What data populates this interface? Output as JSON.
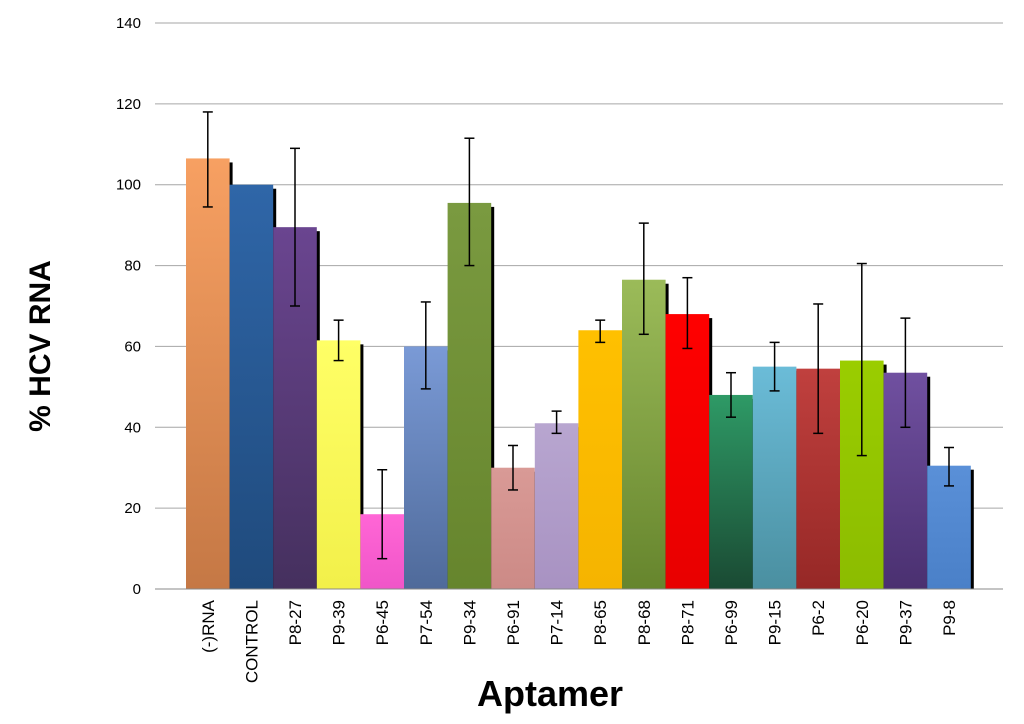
{
  "chart_data": {
    "type": "bar",
    "title": "",
    "xlabel": "Aptamer",
    "ylabel": "% HCV RNA",
    "ylim": [
      0,
      140
    ],
    "yticks": [
      0,
      20,
      40,
      60,
      80,
      100,
      120,
      140
    ],
    "grid": true,
    "categories": [
      "(-)RNA",
      "CONTROL",
      "P8-27",
      "P9-39",
      "P6-45",
      "P7-54",
      "P9-34",
      "P6-91",
      "P7-14",
      "P8-65",
      "P8-68",
      "P8-71",
      "P6-99",
      "P9-15",
      "P6-2",
      "P6-20",
      "P9-37",
      "P9-8"
    ],
    "values": [
      106.5,
      100,
      89.5,
      61.5,
      18.5,
      60,
      95.5,
      30,
      41,
      64,
      76.5,
      68,
      48,
      55,
      54.5,
      56.5,
      53.5,
      30.5
    ],
    "error_low": [
      94.5,
      100,
      70,
      56.5,
      7.5,
      49.5,
      80,
      24.5,
      38.5,
      61,
      63,
      59.5,
      42.5,
      49,
      38.5,
      33,
      40,
      25.5
    ],
    "error_high": [
      118,
      100,
      109,
      66.5,
      29.5,
      71,
      111.5,
      35.5,
      44,
      66.5,
      90.5,
      77,
      53.5,
      61,
      70.5,
      80.5,
      67,
      35
    ],
    "colors": [
      [
        "#f7a062",
        "#c57845"
      ],
      [
        "#2f66a8",
        "#1f4a7c"
      ],
      [
        "#6a4590",
        "#45305e"
      ],
      [
        "#ffff66",
        "#f2f04a"
      ],
      [
        "#ff66d6",
        "#f055c8"
      ],
      [
        "#7a9ad6",
        "#4f6a9a"
      ],
      [
        "#7a9a40",
        "#66852d"
      ],
      [
        "#d99a96",
        "#cc8a86"
      ],
      [
        "#b8a6d0",
        "#a892c2"
      ],
      [
        "#ffc000",
        "#f5b400"
      ],
      [
        "#9bbb59",
        "#66852d"
      ],
      [
        "#ff0000",
        "#e80000"
      ],
      [
        "#2e9a66",
        "#1a4a33"
      ],
      [
        "#6bbcd8",
        "#4a8fa0"
      ],
      [
        "#c0403e",
        "#962826"
      ],
      [
        "#9acd00",
        "#8cbc00"
      ],
      [
        "#7050a0",
        "#4a3070"
      ],
      [
        "#5a90d8",
        "#4a80c8"
      ]
    ]
  }
}
